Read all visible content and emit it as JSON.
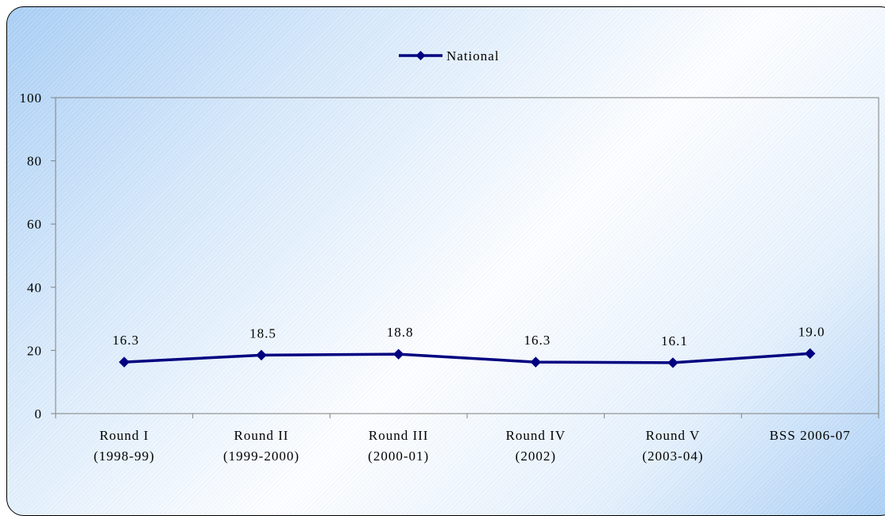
{
  "chart_data": {
    "type": "line",
    "categories": [
      [
        "Round I",
        "(1998-99)"
      ],
      [
        "Round  II",
        "(1999-2000)"
      ],
      [
        "Round III",
        "(2000-01)"
      ],
      [
        "Round IV",
        "(2002)"
      ],
      [
        "Round V",
        "(2003-04)"
      ],
      [
        "BSS 2006-07"
      ]
    ],
    "series": [
      {
        "name": "National",
        "values": [
          16.3,
          18.5,
          18.8,
          16.3,
          16.1,
          19.0
        ],
        "labels": [
          "16.3",
          "18.5",
          "18.8",
          "16.3",
          "16.1",
          "19.0"
        ],
        "color": "#000080"
      }
    ],
    "yticks": [
      "0",
      "20",
      "40",
      "60",
      "80",
      "100"
    ],
    "ylim": [
      0,
      100
    ],
    "grid": false,
    "legend_position": "top-center",
    "plot_border_color": "#808080"
  }
}
